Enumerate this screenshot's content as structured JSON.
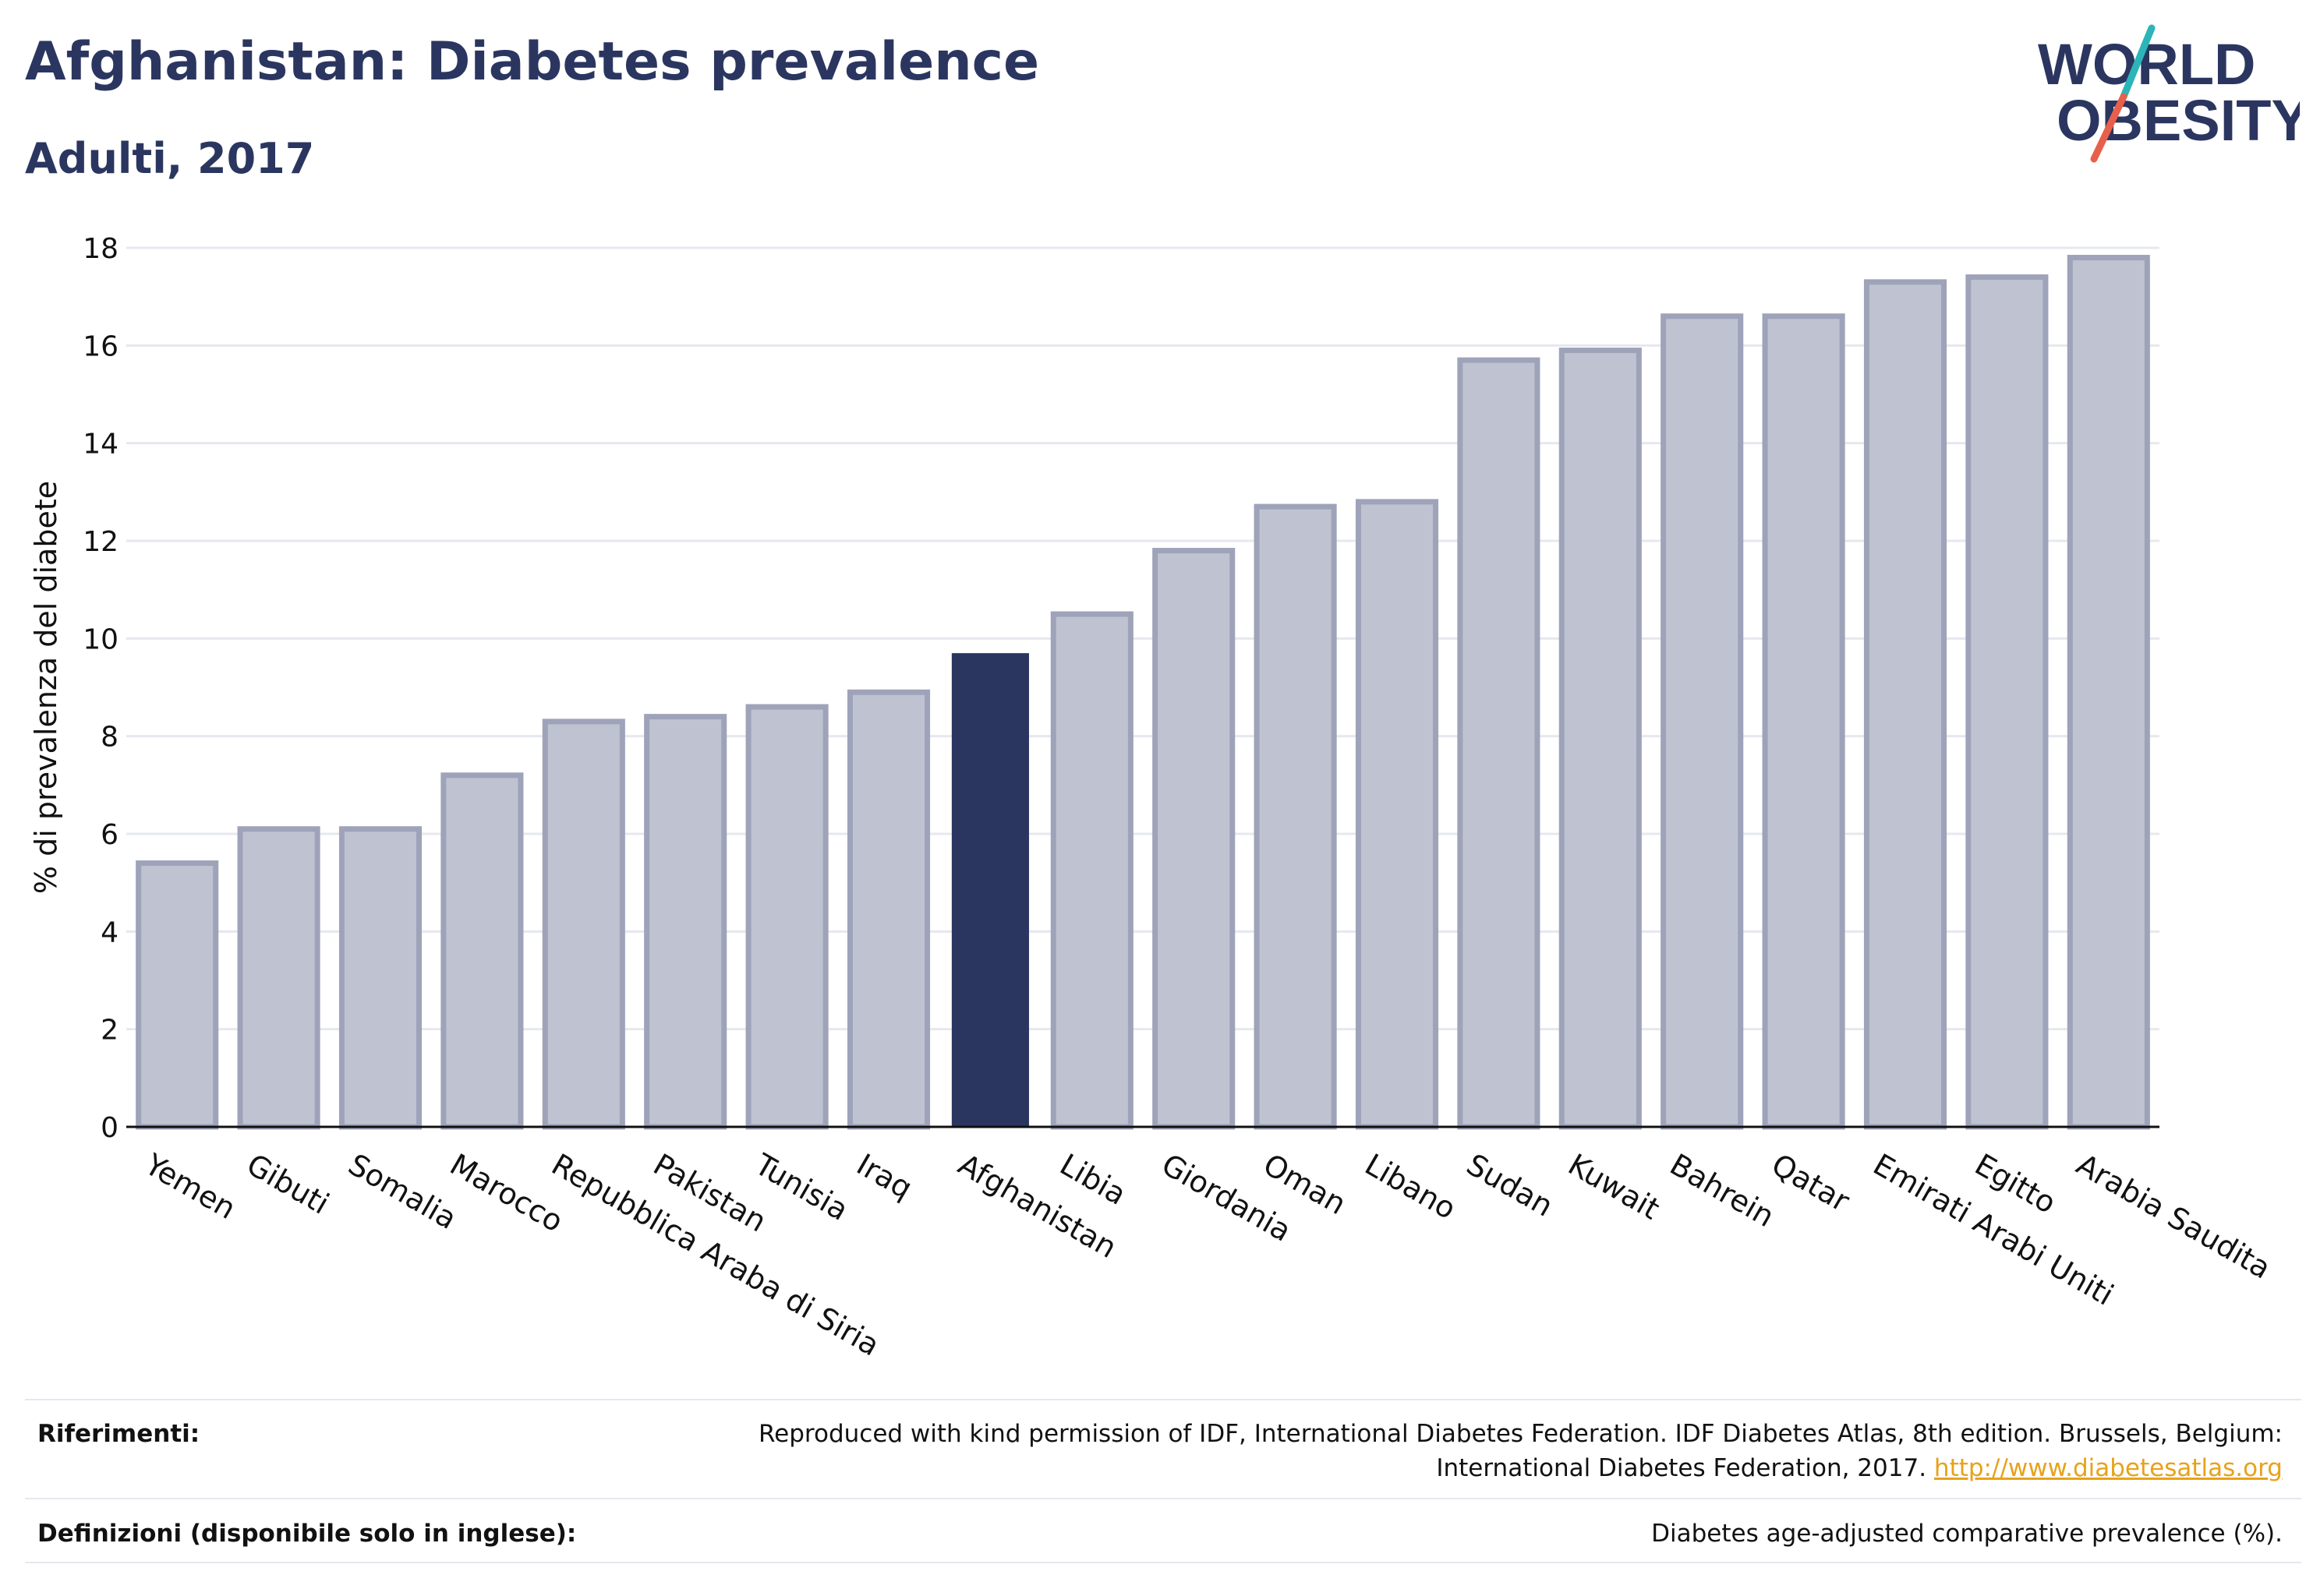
{
  "header": {
    "title": "Afghanistan: Diabetes prevalence",
    "subtitle": "Adulti, 2017"
  },
  "logo": {
    "line1": "WORLD",
    "line2": "OBESITY",
    "colors": {
      "text": "#2b3660",
      "slash_top": "#2bb5b8",
      "slash_bottom": "#e8604c"
    }
  },
  "chart_data": {
    "type": "bar",
    "ylabel": "% di prevalenza del diabete",
    "ylim": [
      0,
      18
    ],
    "yticks": [
      0,
      2,
      4,
      6,
      8,
      10,
      12,
      14,
      16,
      18
    ],
    "grid": true,
    "highlight": "Afghanistan",
    "colors": {
      "bar": "#bfc2d0",
      "bar_border": "#9ea3b9",
      "highlight": "#2b3660"
    },
    "categories": [
      "Yemen",
      "Gibuti",
      "Somalia",
      "Marocco",
      "Repubblica Araba di Siria",
      "Pakistan",
      "Tunisia",
      "Iraq",
      "Afghanistan",
      "Libia",
      "Giordania",
      "Oman",
      "Libano",
      "Sudan",
      "Kuwait",
      "Bahrein",
      "Qatar",
      "Emirati Arabi Uniti",
      "Egitto",
      "Arabia Saudita"
    ],
    "values": [
      5.4,
      6.1,
      6.1,
      7.2,
      8.3,
      8.4,
      8.6,
      8.9,
      9.7,
      10.5,
      11.8,
      12.7,
      12.8,
      15.7,
      15.9,
      16.6,
      16.6,
      17.3,
      17.4,
      17.8
    ]
  },
  "footer": {
    "references_label": "Riferimenti:",
    "references_line1": "Reproduced with kind permission of IDF, International Diabetes Federation. IDF Diabetes Atlas, 8th edition. Brussels, Belgium:",
    "references_line2": "International Diabetes Federation, 2017.",
    "references_link": "http://www.diabetesatlas.org",
    "definitions_label": "Definizioni (disponibile solo in inglese):",
    "definitions_text": "Diabetes age-adjusted comparative prevalence (%)."
  }
}
